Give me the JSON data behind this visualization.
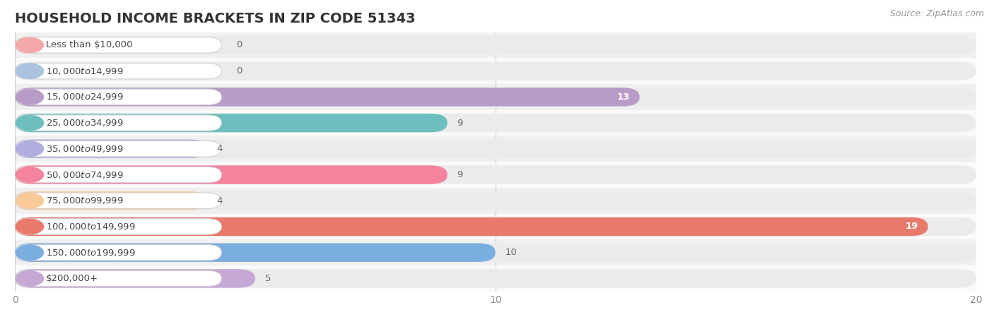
{
  "title": "HOUSEHOLD INCOME BRACKETS IN ZIP CODE 51343",
  "source": "Source: ZipAtlas.com",
  "categories": [
    "Less than $10,000",
    "$10,000 to $14,999",
    "$15,000 to $24,999",
    "$25,000 to $34,999",
    "$35,000 to $49,999",
    "$50,000 to $74,999",
    "$75,000 to $99,999",
    "$100,000 to $149,999",
    "$150,000 to $199,999",
    "$200,000+"
  ],
  "values": [
    0,
    0,
    13,
    9,
    4,
    9,
    4,
    19,
    10,
    5
  ],
  "bar_colors": [
    "#f4a9a8",
    "#aac4e0",
    "#b89cc8",
    "#6dbfbf",
    "#b0aede",
    "#f4849e",
    "#f9c99a",
    "#e8796b",
    "#7aaee0",
    "#c5a8d4"
  ],
  "row_bg_colors": [
    "#f0f0f0",
    "#fafafa"
  ],
  "xlim": [
    0,
    20
  ],
  "xticks": [
    0,
    10,
    20
  ],
  "background_color": "#ffffff",
  "bar_background_color": "#ebebeb",
  "title_fontsize": 14,
  "source_fontsize": 9,
  "label_fontsize": 9.5,
  "value_fontsize": 9.5
}
